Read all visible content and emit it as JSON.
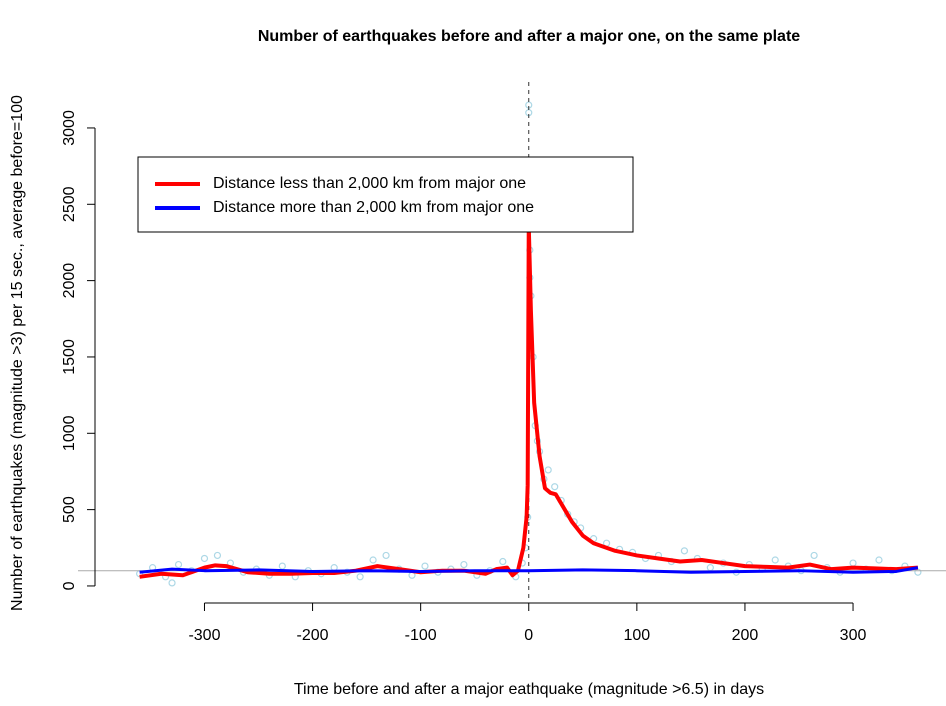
{
  "chart_data": {
    "type": "line",
    "title": "Number of earthquakes before and after a major one, on the same plate",
    "x_label": "Time before and after a major eathquake (magnitude >6.5) in days",
    "y_label": "Number of earthquakes (magnitude >3) per 15 sec., average before=100",
    "xlim": [
      -417,
      386
    ],
    "ylim": [
      -92,
      3301
    ],
    "xticks": [
      -300,
      -200,
      -100,
      0,
      100,
      200,
      300
    ],
    "yticks": [
      0,
      500,
      1000,
      1500,
      2000,
      2500,
      3000
    ],
    "hline": 100,
    "vline": 0,
    "legend": "top-left",
    "points": {
      "color": "#add8e6",
      "x": [
        -360,
        -348,
        -336,
        -330,
        -324,
        -312,
        -300,
        -288,
        -276,
        -264,
        -252,
        -240,
        -228,
        -216,
        -204,
        -192,
        -180,
        -168,
        -156,
        -144,
        -132,
        -120,
        -108,
        -96,
        -84,
        -72,
        -60,
        -48,
        -36,
        -24,
        -12,
        -6,
        -3,
        -1,
        0,
        0,
        1,
        1,
        2,
        4,
        6,
        8,
        10,
        14,
        18,
        24,
        30,
        36,
        42,
        48,
        60,
        72,
        84,
        96,
        108,
        120,
        132,
        144,
        156,
        168,
        180,
        192,
        204,
        216,
        228,
        240,
        252,
        264,
        276,
        288,
        300,
        312,
        324,
        336,
        348,
        360
      ],
      "values": [
        80,
        120,
        60,
        20,
        140,
        100,
        180,
        200,
        150,
        90,
        110,
        70,
        130,
        60,
        100,
        80,
        120,
        90,
        60,
        170,
        200,
        110,
        70,
        130,
        90,
        110,
        140,
        70,
        100,
        160,
        60,
        150,
        250,
        450,
        3150,
        3100,
        2200,
        2020,
        1900,
        1500,
        1050,
        950,
        880,
        700,
        760,
        650,
        560,
        470,
        420,
        380,
        310,
        280,
        240,
        220,
        180,
        200,
        160,
        230,
        180,
        120,
        150,
        90,
        140,
        110,
        170,
        130,
        100,
        200,
        120,
        90,
        150,
        110,
        170,
        100,
        130,
        90
      ]
    },
    "series": [
      {
        "name": "Distance less than 2,000 km from major one",
        "color": "#ff0000",
        "x": [
          -360,
          -340,
          -320,
          -300,
          -290,
          -280,
          -260,
          -240,
          -220,
          -200,
          -180,
          -160,
          -140,
          -120,
          -100,
          -80,
          -60,
          -40,
          -30,
          -20,
          -15,
          -10,
          -5,
          -2,
          -1,
          0,
          2,
          5,
          10,
          15,
          20,
          25,
          30,
          40,
          50,
          60,
          80,
          100,
          120,
          140,
          160,
          180,
          200,
          220,
          240,
          260,
          280,
          300,
          320,
          340,
          360
        ],
        "values": [
          60,
          80,
          70,
          120,
          135,
          130,
          90,
          80,
          80,
          85,
          85,
          100,
          130,
          110,
          90,
          100,
          100,
          80,
          110,
          120,
          70,
          100,
          250,
          450,
          660,
          2360,
          1800,
          1200,
          850,
          640,
          610,
          600,
          540,
          420,
          330,
          280,
          230,
          200,
          180,
          160,
          170,
          150,
          130,
          125,
          120,
          140,
          110,
          120,
          115,
          110,
          120
        ]
      },
      {
        "name": "Distance more than 2,000 km from major one",
        "color": "#0000ff",
        "x": [
          -360,
          -330,
          -300,
          -250,
          -200,
          -150,
          -100,
          -50,
          0,
          50,
          100,
          150,
          200,
          250,
          300,
          340,
          360
        ],
        "values": [
          90,
          110,
          100,
          105,
          95,
          100,
          95,
          100,
          100,
          105,
          100,
          90,
          95,
          100,
          90,
          95,
          120
        ]
      }
    ]
  }
}
